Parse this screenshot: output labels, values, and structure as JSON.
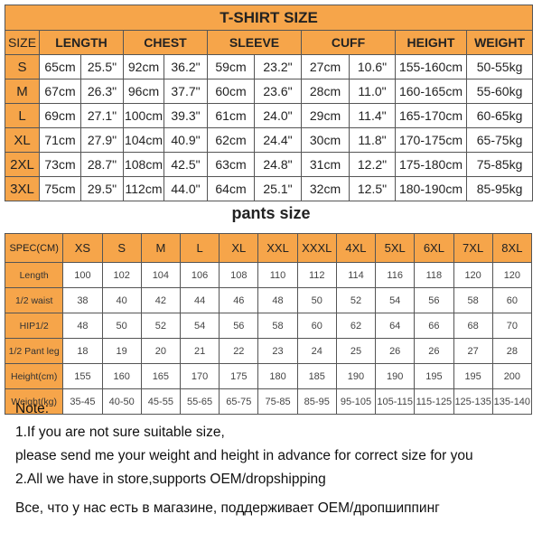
{
  "colors": {
    "header": "#f6a54a",
    "border": "#555555"
  },
  "tshirt": {
    "title": "T-SHIRT SIZE",
    "headers": [
      "SIZE",
      "LENGTH",
      "CHEST",
      "SLEEVE",
      "CUFF",
      "HEIGHT",
      "WEIGHT"
    ],
    "rows": [
      {
        "size": "S",
        "cells": [
          "65cm",
          "25.5\"",
          "92cm",
          "36.2\"",
          "59cm",
          "23.2\"",
          "27cm",
          "10.6\"",
          "155-160cm",
          "50-55kg"
        ]
      },
      {
        "size": "M",
        "cells": [
          "67cm",
          "26.3\"",
          "96cm",
          "37.7\"",
          "60cm",
          "23.6\"",
          "28cm",
          "11.0\"",
          "160-165cm",
          "55-60kg"
        ]
      },
      {
        "size": "L",
        "cells": [
          "69cm",
          "27.1\"",
          "100cm",
          "39.3\"",
          "61cm",
          "24.0\"",
          "29cm",
          "11.4\"",
          "165-170cm",
          "60-65kg"
        ]
      },
      {
        "size": "XL",
        "cells": [
          "71cm",
          "27.9\"",
          "104cm",
          "40.9\"",
          "62cm",
          "24.4\"",
          "30cm",
          "11.8\"",
          "170-175cm",
          "65-75kg"
        ]
      },
      {
        "size": "2XL",
        "cells": [
          "73cm",
          "28.7\"",
          "108cm",
          "42.5\"",
          "63cm",
          "24.8\"",
          "31cm",
          "12.2\"",
          "175-180cm",
          "75-85kg"
        ]
      },
      {
        "size": "3XL",
        "cells": [
          "75cm",
          "29.5\"",
          "112cm",
          "44.0\"",
          "64cm",
          "25.1\"",
          "32cm",
          "12.5\"",
          "180-190cm",
          "85-95kg"
        ]
      }
    ]
  },
  "pants": {
    "title": "pants size",
    "headers": [
      "SPEC(CM)",
      "XS",
      "S",
      "M",
      "L",
      "XL",
      "XXL",
      "XXXL",
      "4XL",
      "5XL",
      "6XL",
      "7XL",
      "8XL"
    ],
    "rows": [
      {
        "label": "Length",
        "cells": [
          "100",
          "102",
          "104",
          "106",
          "108",
          "110",
          "112",
          "114",
          "116",
          "118",
          "120",
          "120"
        ]
      },
      {
        "label": "1/2 waist",
        "cells": [
          "38",
          "40",
          "42",
          "44",
          "46",
          "48",
          "50",
          "52",
          "54",
          "56",
          "58",
          "60"
        ]
      },
      {
        "label": "HIP1/2",
        "cells": [
          "48",
          "50",
          "52",
          "54",
          "56",
          "58",
          "60",
          "62",
          "64",
          "66",
          "68",
          "70"
        ]
      },
      {
        "label": "1/2 Pant leg",
        "cells": [
          "18",
          "19",
          "20",
          "21",
          "22",
          "23",
          "24",
          "25",
          "26",
          "26",
          "27",
          "28"
        ]
      },
      {
        "label": "Height(cm)",
        "cells": [
          "155",
          "160",
          "165",
          "170",
          "175",
          "180",
          "185",
          "190",
          "190",
          "195",
          "195",
          "200"
        ]
      },
      {
        "label": "Weight(kg)",
        "cells": [
          "35-45",
          "40-50",
          "45-55",
          "55-65",
          "65-75",
          "75-85",
          "85-95",
          "95-105",
          "105-115",
          "115-125",
          "125-135",
          "135-140"
        ]
      }
    ]
  },
  "notes": {
    "heading": "Note:",
    "lines": [
      "1.If you are not sure suitable size,",
      "please send me your weight and height in advance for correct size for you",
      "2.All we have in store,supports OEM/dropshipping"
    ],
    "russian": "Все, что у нас есть в магазине, поддерживает OEM/дропшиппинг"
  }
}
